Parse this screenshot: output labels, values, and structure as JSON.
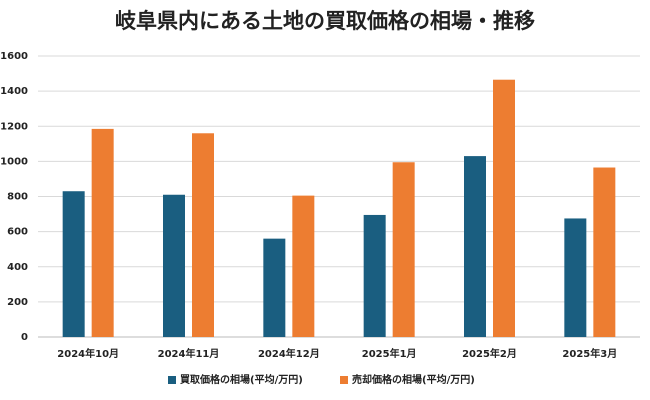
{
  "chart_data": {
    "type": "bar",
    "title": "岐阜県内にある土地の買取価格の相場・推移",
    "categories": [
      "2024年10月",
      "2024年11月",
      "2024年12月",
      "2025年1月",
      "2025年2月",
      "2025年3月"
    ],
    "series": [
      {
        "name": "買取価格の相場(平均/万円)",
        "color": "#1a5e80",
        "values": [
          830,
          810,
          560,
          695,
          1030,
          675
        ]
      },
      {
        "name": "売却価格の相場(平均/万円)",
        "color": "#ed7d31",
        "values": [
          1185,
          1160,
          805,
          995,
          1465,
          965
        ]
      }
    ],
    "ylim": [
      0,
      1600
    ],
    "yticks": [
      0,
      200,
      400,
      600,
      800,
      1000,
      1200,
      1400,
      1600
    ],
    "grid": true,
    "legend": "bottom"
  }
}
